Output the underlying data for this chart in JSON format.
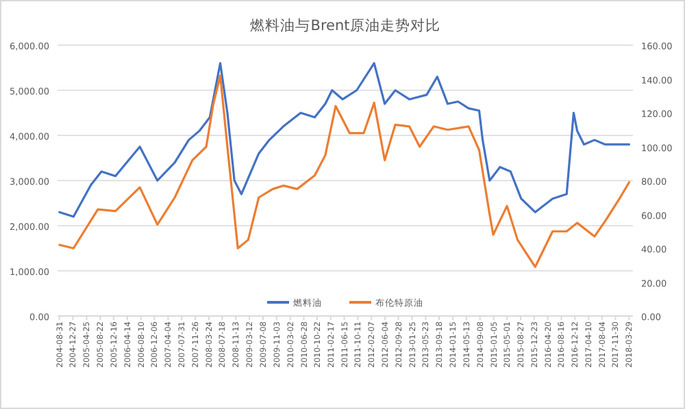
{
  "chart_data": {
    "type": "line",
    "title": "燃料油与Brent原油走势对比",
    "legend": "bottom",
    "grid": "y",
    "marker": "none",
    "line_style": "solid",
    "xlim": [
      "2004-08-15",
      "2018-05-01"
    ],
    "xticks": [
      "2004-08-31",
      "2004-12-27",
      "2005-04-25",
      "2005-08-22",
      "2005-12-16",
      "2006-04-14",
      "2006-08-10",
      "2006-12-06",
      "2007-04-04",
      "2007-07-31",
      "2007-11-26",
      "2008-03-24",
      "2008-07-18",
      "2008-11-13",
      "2009-03-12",
      "2009-07-08",
      "2009-11-03",
      "2010-03-02",
      "2010-06-28",
      "2010-10-22",
      "2011-02-17",
      "2011-06-15",
      "2011-10-11",
      "2012-02-07",
      "2012-06-04",
      "2012-09-28",
      "2013-01-25",
      "2013-05-23",
      "2013-09-18",
      "2014-01-15",
      "2014-05-13",
      "2014-09-08",
      "2015-01-05",
      "2015-05-01",
      "2015-08-27",
      "2015-12-23",
      "2016-04-20",
      "2016-08-16",
      "2016-12-12",
      "2017-04-10",
      "2017-08-04",
      "2017-11-30",
      "2018-03-29"
    ],
    "ylim": [
      0,
      6000
    ],
    "yticks": [
      {
        "value": 0,
        "label": "0.00"
      },
      {
        "value": 1000,
        "label": "1,000.00"
      },
      {
        "value": 2000,
        "label": "2,000.00"
      },
      {
        "value": 3000,
        "label": "3,000.00"
      },
      {
        "value": 4000,
        "label": "4,000.00"
      },
      {
        "value": 5000,
        "label": "5,000.00"
      },
      {
        "value": 6000,
        "label": "6,000.00"
      }
    ],
    "y2lim": [
      0,
      160
    ],
    "y2ticks": [
      {
        "value": 0,
        "label": "0.00"
      },
      {
        "value": 20,
        "label": "20.00"
      },
      {
        "value": 40,
        "label": "40.00"
      },
      {
        "value": 60,
        "label": "60.00"
      },
      {
        "value": 80,
        "label": "80.00"
      },
      {
        "value": 100,
        "label": "100.00"
      },
      {
        "value": 120,
        "label": "120.00"
      },
      {
        "value": 140,
        "label": "140.00"
      },
      {
        "value": 160,
        "label": "160.00"
      }
    ],
    "series": [
      {
        "name": "燃料油",
        "color": "#4472c4",
        "x": [
          "2004-09-01",
          "2005-01-01",
          "2005-06-01",
          "2005-09-01",
          "2006-01-01",
          "2006-08-01",
          "2007-01-01",
          "2007-06-01",
          "2007-10-01",
          "2008-01-01",
          "2008-04-01",
          "2008-07-01",
          "2008-09-01",
          "2008-11-01",
          "2009-01-01",
          "2009-06-01",
          "2009-09-01",
          "2010-01-01",
          "2010-06-01",
          "2010-10-01",
          "2011-01-01",
          "2011-03-01",
          "2011-06-01",
          "2011-10-01",
          "2012-03-01",
          "2012-06-01",
          "2012-09-01",
          "2013-01-01",
          "2013-06-01",
          "2013-09-01",
          "2013-12-01",
          "2014-03-01",
          "2014-06-01",
          "2014-09-01",
          "2014-10-01",
          "2014-12-01",
          "2015-03-01",
          "2015-06-01",
          "2015-09-01",
          "2016-01-01",
          "2016-06-01",
          "2016-10-01",
          "2016-12-01",
          "2017-01-01",
          "2017-03-01",
          "2017-06-01",
          "2017-09-01",
          "2018-03-29"
        ],
        "values": [
          2300,
          2200,
          2900,
          3200,
          3100,
          3750,
          3000,
          3400,
          3900,
          4100,
          4400,
          5600,
          4500,
          3000,
          2700,
          3600,
          3900,
          4200,
          4500,
          4400,
          4700,
          5000,
          4800,
          5000,
          5600,
          4700,
          5000,
          4800,
          4900,
          5300,
          4700,
          4750,
          4600,
          4550,
          3900,
          3000,
          3300,
          3200,
          2600,
          2300,
          2600,
          2700,
          4500,
          4100,
          3800,
          3900,
          3800,
          3800
        ]
      },
      {
        "name": "布伦特原油",
        "color": "#ed7d31",
        "axis": "y2",
        "x": [
          "2004-09-01",
          "2005-01-01",
          "2005-08-01",
          "2006-01-01",
          "2006-08-01",
          "2007-01-01",
          "2007-06-01",
          "2007-11-01",
          "2008-03-01",
          "2008-05-01",
          "2008-07-01",
          "2008-09-01",
          "2008-12-01",
          "2009-03-01",
          "2009-06-01",
          "2009-10-01",
          "2010-01-01",
          "2010-05-01",
          "2010-10-01",
          "2011-01-01",
          "2011-04-01",
          "2011-08-01",
          "2011-12-01",
          "2012-03-01",
          "2012-06-01",
          "2012-09-01",
          "2013-01-01",
          "2013-04-01",
          "2013-08-01",
          "2013-12-01",
          "2014-06-01",
          "2014-09-01",
          "2014-12-01",
          "2015-01-01",
          "2015-05-01",
          "2015-08-01",
          "2016-01-01",
          "2016-06-01",
          "2016-10-01",
          "2017-01-01",
          "2017-06-01",
          "2017-09-01",
          "2018-01-01",
          "2018-03-29"
        ],
        "values": [
          42,
          40,
          63,
          62,
          76,
          54,
          70,
          92,
          100,
          125,
          142,
          100,
          40,
          45,
          70,
          75,
          77,
          75,
          83,
          95,
          124,
          108,
          108,
          126,
          92,
          113,
          112,
          100,
          112,
          110,
          112,
          98,
          60,
          48,
          65,
          45,
          29,
          50,
          50,
          55,
          47,
          56,
          69,
          79
        ]
      }
    ]
  }
}
